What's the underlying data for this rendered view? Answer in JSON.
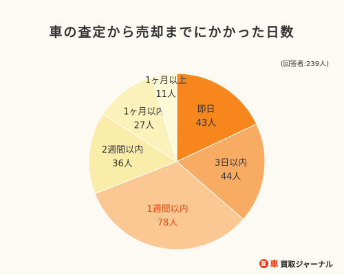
{
  "header": {
    "title": "車の査定から売却までにかかった日数",
    "note": "(回答者:239人)"
  },
  "chart_data": {
    "type": "pie",
    "total_label": "回答者:239人",
    "slices": [
      {
        "label": "即日",
        "value": 43,
        "value_label": "43人",
        "color": "#f7861d",
        "text_color": "#333333"
      },
      {
        "label": "3日以内",
        "value": 44,
        "value_label": "44人",
        "color": "#f8ab62",
        "text_color": "#333333"
      },
      {
        "label": "1週間以内",
        "value": 78,
        "value_label": "78人",
        "color": "#fbc793",
        "text_color": "#ea4a12"
      },
      {
        "label": "2週間以内",
        "value": 36,
        "value_label": "36人",
        "color": "#faedaa",
        "text_color": "#333333"
      },
      {
        "label": "1ヶ月以内",
        "value": 27,
        "value_label": "27人",
        "color": "#fbf2bb",
        "text_color": "#333333"
      },
      {
        "label": "1ヶ月以上",
        "value": 11,
        "value_label": "11人",
        "color": "#fdf8d5",
        "text_color": "#333333"
      }
    ]
  },
  "brand": {
    "icon": "査",
    "car": "車",
    "text": "買取ジャーナル"
  }
}
